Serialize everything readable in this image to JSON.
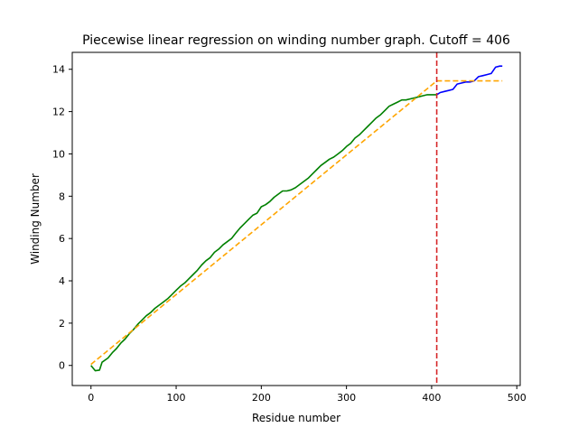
{
  "chart_data": {
    "type": "line",
    "title": "Piecewise linear regression on winding number graph. Cutoff = 406",
    "xlabel": "Residue number",
    "ylabel": "Winding Number",
    "xlim": [
      -22,
      504
    ],
    "ylim": [
      -0.95,
      14.8
    ],
    "xticks": [
      0,
      100,
      200,
      300,
      400,
      500
    ],
    "yticks": [
      0,
      2,
      4,
      6,
      8,
      10,
      12,
      14
    ],
    "grid": false,
    "legend": "none",
    "cutoff": 406,
    "series": [
      {
        "color": "#008000",
        "style": "solid",
        "x": [
          0,
          5,
          10,
          13,
          20,
          25,
          30,
          35,
          40,
          45,
          50,
          55,
          60,
          65,
          70,
          75,
          80,
          85,
          90,
          95,
          100,
          105,
          110,
          115,
          120,
          125,
          130,
          135,
          140,
          145,
          150,
          155,
          160,
          165,
          170,
          175,
          180,
          185,
          190,
          195,
          200,
          205,
          210,
          215,
          220,
          225,
          230,
          235,
          240,
          245,
          250,
          255,
          260,
          265,
          270,
          275,
          280,
          285,
          290,
          295,
          300,
          305,
          310,
          315,
          320,
          325,
          330,
          335,
          340,
          345,
          350,
          355,
          360,
          365,
          370,
          375,
          380,
          385,
          390,
          395,
          400,
          406
        ],
        "values": [
          0.0,
          -0.25,
          -0.22,
          0.15,
          0.35,
          0.6,
          0.8,
          1.05,
          1.25,
          1.5,
          1.7,
          1.95,
          2.15,
          2.35,
          2.5,
          2.7,
          2.85,
          3.0,
          3.15,
          3.35,
          3.55,
          3.75,
          3.9,
          4.1,
          4.3,
          4.5,
          4.75,
          4.95,
          5.1,
          5.35,
          5.5,
          5.7,
          5.85,
          6.0,
          6.25,
          6.5,
          6.7,
          6.9,
          7.1,
          7.2,
          7.5,
          7.6,
          7.75,
          7.95,
          8.1,
          8.25,
          8.25,
          8.3,
          8.4,
          8.55,
          8.7,
          8.85,
          9.05,
          9.25,
          9.45,
          9.6,
          9.75,
          9.85,
          10.0,
          10.15,
          10.35,
          10.5,
          10.75,
          10.9,
          11.1,
          11.3,
          11.5,
          11.7,
          11.85,
          12.05,
          12.25,
          12.35,
          12.45,
          12.55,
          12.55,
          12.6,
          12.65,
          12.7,
          12.75,
          12.8,
          12.8,
          12.8
        ]
      },
      {
        "color": "#0000ff",
        "style": "solid",
        "x": [
          406,
          410,
          415,
          420,
          425,
          430,
          435,
          440,
          445,
          450,
          455,
          460,
          465,
          470,
          475,
          480,
          483
        ],
        "values": [
          12.8,
          12.9,
          12.95,
          13.0,
          13.05,
          13.3,
          13.35,
          13.4,
          13.4,
          13.45,
          13.65,
          13.7,
          13.75,
          13.8,
          14.1,
          14.15,
          14.15
        ]
      },
      {
        "color": "#ffa500",
        "style": "dashed",
        "x": [
          0,
          406,
          483
        ],
        "values": [
          0.05,
          13.45,
          13.45
        ]
      }
    ]
  }
}
